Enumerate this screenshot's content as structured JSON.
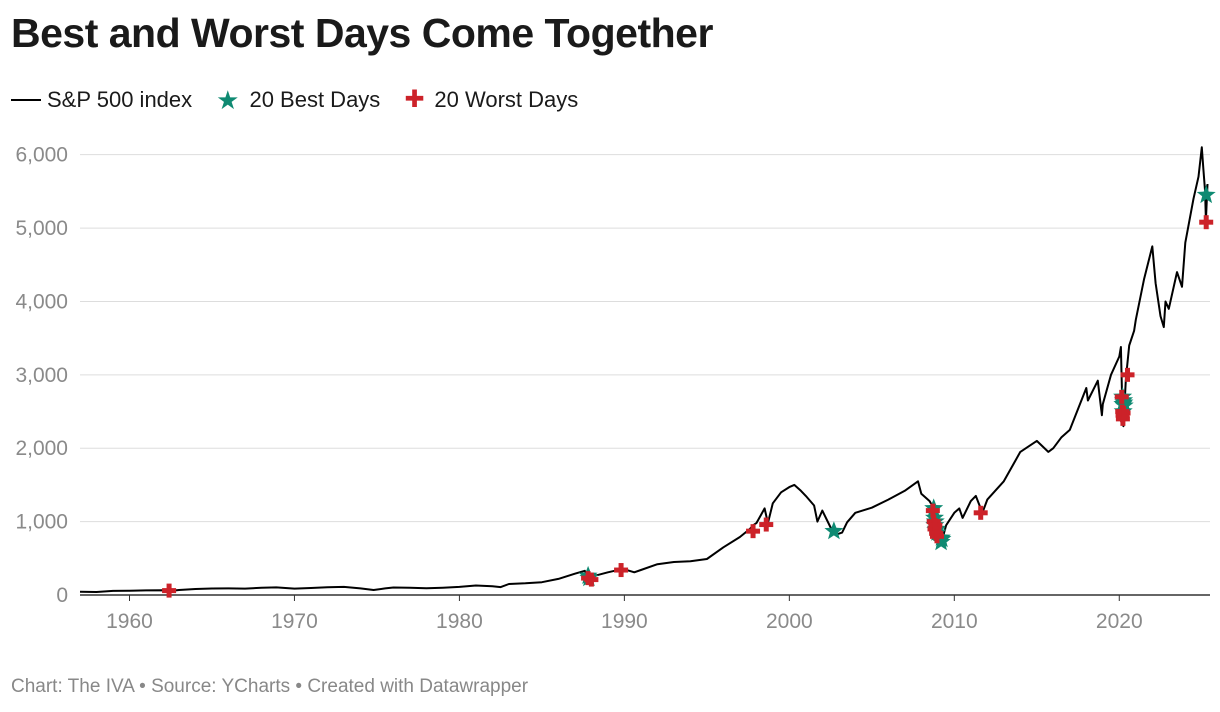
{
  "chart_data": {
    "type": "line",
    "title": "Best and Worst Days Come Together",
    "xlabel": "",
    "ylabel": "",
    "xlim": [
      1957,
      2025.5
    ],
    "ylim": [
      0,
      6200
    ],
    "x_ticks": [
      {
        "value": 1960,
        "label": "1960"
      },
      {
        "value": 1970,
        "label": "1970"
      },
      {
        "value": 1980,
        "label": "1980"
      },
      {
        "value": 1990,
        "label": "1990"
      },
      {
        "value": 2000,
        "label": "2000"
      },
      {
        "value": 2010,
        "label": "2010"
      },
      {
        "value": 2020,
        "label": "2020"
      }
    ],
    "y_ticks": [
      {
        "value": 0,
        "label": "0"
      },
      {
        "value": 1000,
        "label": "1,000"
      },
      {
        "value": 2000,
        "label": "2,000"
      },
      {
        "value": 3000,
        "label": "3,000"
      },
      {
        "value": 4000,
        "label": "4,000"
      },
      {
        "value": 5000,
        "label": "5,000"
      },
      {
        "value": 6000,
        "label": "6,000"
      }
    ],
    "grid": true,
    "legend": [
      {
        "name": "S&P 500 index",
        "marker": "line",
        "color": "#000000"
      },
      {
        "name": "20 Best Days",
        "marker": "star",
        "color": "#0f8a72"
      },
      {
        "name": "20 Worst Days",
        "marker": "plus",
        "color": "#cc2229"
      }
    ],
    "legend_placement": "top-left",
    "series": [
      {
        "name": "S&P 500 index",
        "x": [
          1957.0,
          1958.0,
          1959.0,
          1960.0,
          1961.0,
          1962.0,
          1962.5,
          1963.0,
          1964.0,
          1965.0,
          1966.0,
          1967.0,
          1968.0,
          1968.9,
          1970.0,
          1971.0,
          1972.0,
          1973.0,
          1974.0,
          1974.8,
          1975.5,
          1976.0,
          1977.0,
          1978.0,
          1979.0,
          1980.0,
          1981.0,
          1982.0,
          1982.5,
          1983.0,
          1984.0,
          1985.0,
          1986.0,
          1987.0,
          1987.6,
          1987.8,
          1988.0,
          1989.0,
          1989.8,
          1990.0,
          1990.6,
          1991.0,
          1992.0,
          1993.0,
          1994.0,
          1995.0,
          1996.0,
          1997.0,
          1997.6,
          1997.8,
          1998.0,
          1998.5,
          1998.7,
          1999.0,
          1999.5,
          2000.0,
          2000.3,
          2000.7,
          2001.0,
          2001.5,
          2001.7,
          2002.0,
          2002.5,
          2002.8,
          2003.2,
          2003.5,
          2004.0,
          2005.0,
          2006.0,
          2007.0,
          2007.8,
          2008.0,
          2008.5,
          2008.7,
          2008.8,
          2008.9,
          2009.0,
          2009.2,
          2009.5,
          2010.0,
          2010.3,
          2010.5,
          2011.0,
          2011.3,
          2011.7,
          2012.0,
          2013.0,
          2014.0,
          2015.0,
          2015.7,
          2016.0,
          2016.5,
          2017.0,
          2018.0,
          2018.1,
          2018.7,
          2018.95,
          2019.0,
          2019.5,
          2020.0,
          2020.1,
          2020.2,
          2020.25,
          2020.4,
          2020.6,
          2020.9,
          2021.0,
          2021.5,
          2022.0,
          2022.2,
          2022.5,
          2022.7,
          2022.8,
          2023.0,
          2023.5,
          2023.8,
          2024.0,
          2024.5,
          2024.8,
          2025.0,
          2025.1,
          2025.2,
          2025.25,
          2025.35
        ],
        "values": [
          45,
          41,
          56,
          59,
          63,
          66,
          56,
          68,
          82,
          88,
          90,
          87,
          98,
          104,
          87,
          95,
          106,
          110,
          90,
          68,
          90,
          102,
          98,
          92,
          100,
          110,
          130,
          118,
          108,
          150,
          160,
          175,
          220,
          290,
          330,
          240,
          250,
          310,
          350,
          350,
          310,
          340,
          420,
          450,
          460,
          490,
          650,
          790,
          900,
          950,
          980,
          1180,
          980,
          1250,
          1400,
          1470,
          1500,
          1420,
          1350,
          1220,
          1000,
          1150,
          920,
          820,
          850,
          990,
          1120,
          1190,
          1300,
          1420,
          1550,
          1380,
          1280,
          1200,
          900,
          800,
          850,
          700,
          950,
          1120,
          1180,
          1050,
          1280,
          1350,
          1120,
          1300,
          1550,
          1950,
          2100,
          1950,
          2000,
          2150,
          2250,
          2820,
          2650,
          2920,
          2450,
          2600,
          3000,
          3250,
          3380,
          2400,
          2300,
          2950,
          3400,
          3600,
          3750,
          4300,
          4750,
          4250,
          3800,
          3650,
          4000,
          3900,
          4400,
          4200,
          4800,
          5400,
          5700,
          6100,
          5800,
          5500,
          5100,
          5600
        ]
      },
      {
        "name": "20 Best Days",
        "marker": "star",
        "x": [
          1987.8,
          1987.85,
          2002.7,
          2008.75,
          2008.8,
          2008.82,
          2008.85,
          2008.88,
          2008.9,
          2008.95,
          2009.2,
          2009.22,
          2020.2,
          2020.22,
          2020.24,
          2020.26,
          2020.28,
          2020.3,
          2025.27,
          2009.25
        ],
        "values": [
          260,
          230,
          870,
          1180,
          1050,
          950,
          1000,
          880,
          900,
          850,
          720,
          780,
          2700,
          2600,
          2500,
          2650,
          2620,
          2580,
          5450,
          760
        ]
      },
      {
        "name": "20 Worst Days",
        "marker": "plus",
        "x": [
          1962.4,
          1987.8,
          1988.0,
          1989.8,
          1997.8,
          1998.6,
          2008.7,
          2008.75,
          2008.8,
          2008.85,
          2008.9,
          2008.95,
          2011.6,
          2020.15,
          2020.18,
          2020.2,
          2020.22,
          2020.26,
          2020.5,
          2025.27
        ],
        "values": [
          60,
          230,
          210,
          340,
          870,
          960,
          1150,
          1000,
          900,
          950,
          840,
          800,
          1120,
          2700,
          2500,
          2450,
          2400,
          2480,
          3000,
          5080
        ]
      }
    ]
  },
  "legend_labels": {
    "line": "S&P 500 index",
    "best": "20 Best Days",
    "worst": "20 Worst Days"
  },
  "footer": "Chart: The IVA • Source: YCharts • Created with Datawrapper"
}
